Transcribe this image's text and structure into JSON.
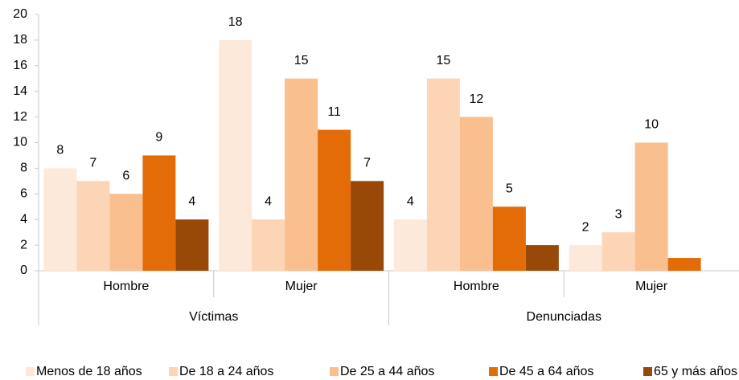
{
  "chart_data": {
    "type": "bar",
    "categories": [
      "Hombre",
      "Mujer",
      "Hombre",
      "Mujer"
    ],
    "groups": [
      "Víctimas",
      "Denunciadas"
    ],
    "series": [
      {
        "name": "Menos de 18 años",
        "color": "#fde9d9",
        "values": [
          8,
          18,
          4,
          2
        ],
        "value_labels": [
          "8",
          "18",
          "4",
          "2"
        ]
      },
      {
        "name": "De 18 a 24 años",
        "color": "#fbd5b5",
        "values": [
          7,
          4,
          15,
          3
        ],
        "value_labels": [
          "7",
          "4",
          "15",
          "3"
        ]
      },
      {
        "name": "De 25 a 44 años",
        "color": "#f9bf8f",
        "values": [
          6,
          15,
          12,
          10
        ],
        "value_labels": [
          "6",
          "15",
          "12",
          "10"
        ]
      },
      {
        "name": "De 45 a 64 años",
        "color": "#e36c09",
        "values": [
          9,
          11,
          5,
          1
        ],
        "value_labels": [
          "9",
          "11",
          "5",
          null
        ]
      },
      {
        "name": "65 y más años",
        "color": "#984807",
        "values": [
          4,
          7,
          2,
          null
        ],
        "value_labels": [
          "4",
          "7",
          null,
          null
        ]
      }
    ],
    "ylim": [
      0,
      20
    ],
    "yticks": [
      0,
      2,
      4,
      6,
      8,
      10,
      12,
      14,
      16,
      18,
      20
    ],
    "grid": false,
    "legend": "bottom"
  }
}
